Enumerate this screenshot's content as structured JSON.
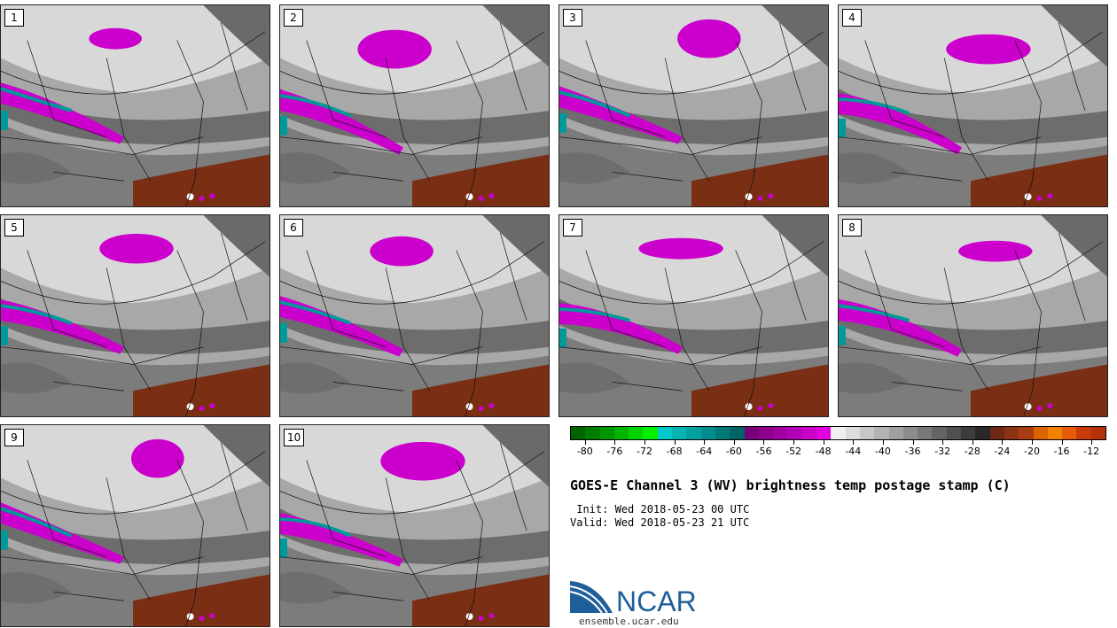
{
  "panels": [
    {
      "label": "1"
    },
    {
      "label": "2"
    },
    {
      "label": "3"
    },
    {
      "label": "4"
    },
    {
      "label": "5"
    },
    {
      "label": "6"
    },
    {
      "label": "7"
    },
    {
      "label": "8"
    },
    {
      "label": "9"
    },
    {
      "label": "10"
    }
  ],
  "colorbar": {
    "colors": [
      "#006400",
      "#007d00",
      "#009600",
      "#00b400",
      "#00d200",
      "#00ee00",
      "#00c8c8",
      "#00b4b4",
      "#00a0a0",
      "#008c8c",
      "#007878",
      "#006464",
      "#780078",
      "#8c008c",
      "#a000a0",
      "#b400b4",
      "#c800c8",
      "#e000e0",
      "#f0f0f0",
      "#dcdcdc",
      "#c8c8c8",
      "#b4b4b4",
      "#a0a0a0",
      "#8c8c8c",
      "#787878",
      "#646464",
      "#505050",
      "#3c3c3c",
      "#282828",
      "#6e2814",
      "#8c3214",
      "#aa3c14",
      "#dc6400",
      "#f08200",
      "#e65a0a",
      "#c83c0a",
      "#b4320a"
    ],
    "tick_labels": [
      "-80",
      "-76",
      "-72",
      "-68",
      "-64",
      "-60",
      "-56",
      "-52",
      "-48",
      "-44",
      "-40",
      "-36",
      "-32",
      "-28",
      "-24",
      "-20",
      "-16",
      "-12"
    ],
    "min": -82,
    "max": -10
  },
  "title": "GOES-E Channel 3 (WV) brightness temp postage stamp (C)",
  "init_line": " Init: Wed 2018-05-23 00 UTC",
  "valid_line": "Valid: Wed 2018-05-23 21 UTC",
  "logo": {
    "text": "NCAR",
    "url": "ensemble.ucar.edu",
    "brand_color": "#1f5f99"
  },
  "map_colors": {
    "light": "#d8d8d8",
    "mid": "#a8a8a8",
    "dark": "#5a5a5a",
    "magenta": "#cc00cc",
    "teal": "#009999",
    "brown": "#7a2e14"
  }
}
